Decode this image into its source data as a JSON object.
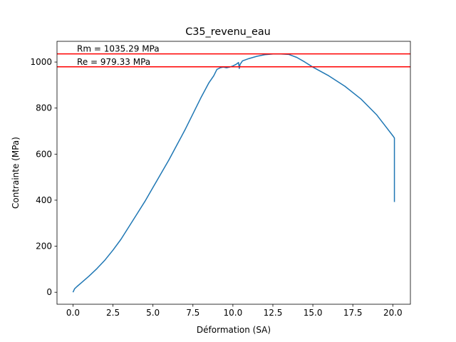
{
  "chart_data": {
    "type": "line",
    "title": "C35_revenu_eau",
    "xlabel": "Déformation (SA)",
    "ylabel": "Contrainte (MPa)",
    "xlim": [
      -1.0,
      21.1
    ],
    "ylim": [
      -52,
      1090
    ],
    "grid": false,
    "xticks": [
      0.0,
      2.5,
      5.0,
      7.5,
      10.0,
      12.5,
      15.0,
      17.5,
      20.0
    ],
    "xtick_labels": [
      "0.0",
      "2.5",
      "5.0",
      "7.5",
      "10.0",
      "12.5",
      "15.0",
      "17.5",
      "20.0"
    ],
    "yticks": [
      0,
      200,
      400,
      600,
      800,
      1000
    ],
    "ytick_labels": [
      "0",
      "200",
      "400",
      "600",
      "800",
      "1000"
    ],
    "series": [
      {
        "color": "#1f77b4",
        "x": [
          0.0,
          0.1,
          0.25,
          0.5,
          1.0,
          1.5,
          2.0,
          2.5,
          3.0,
          3.5,
          4.0,
          4.5,
          5.0,
          5.5,
          6.0,
          6.5,
          7.0,
          7.5,
          8.0,
          8.5,
          8.8,
          9.0,
          9.2,
          9.4,
          9.6,
          9.8,
          10.0,
          10.2,
          10.35,
          10.4,
          10.45,
          10.6,
          11.0,
          11.5,
          12.0,
          12.5,
          13.0,
          13.5,
          14.0,
          14.5,
          15.0,
          16.0,
          17.0,
          18.0,
          19.0,
          19.5,
          20.0,
          20.1,
          20.1
        ],
        "y": [
          0,
          15,
          25,
          40,
          70,
          103,
          140,
          183,
          230,
          285,
          340,
          395,
          455,
          515,
          575,
          640,
          705,
          775,
          845,
          910,
          940,
          968,
          975,
          978,
          975,
          978,
          983,
          990,
          998,
          972,
          990,
          1005,
          1015,
          1025,
          1032,
          1035,
          1035,
          1033,
          1020,
          1000,
          978,
          940,
          895,
          840,
          770,
          725,
          680,
          670,
          392
        ]
      }
    ],
    "hlines": [
      {
        "value": 1035.29,
        "label": "Rm = 1035.29 MPa",
        "color": "#ff0000"
      },
      {
        "value": 979.33,
        "label": "Re = 979.33 MPa",
        "color": "#ff0000"
      }
    ]
  }
}
